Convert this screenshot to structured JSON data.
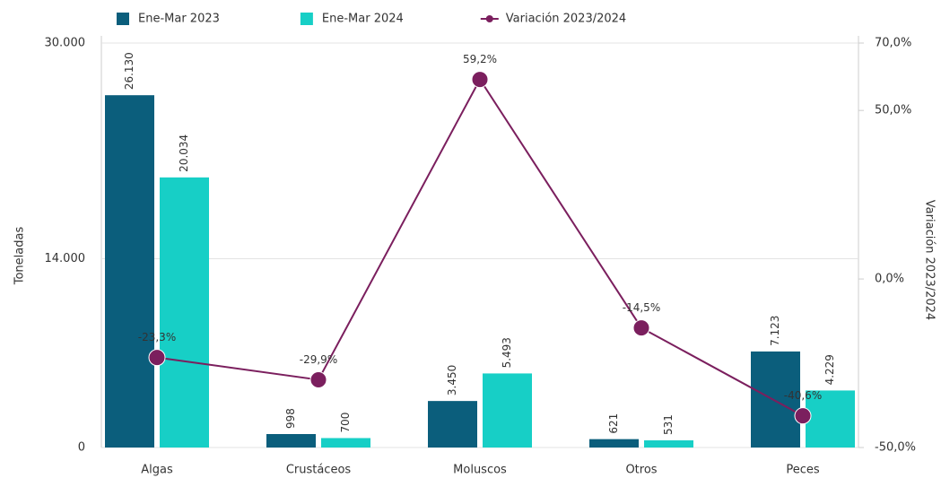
{
  "chart_data": {
    "type": "bar_line",
    "categories": [
      "Algas",
      "Crustáceos",
      "Moluscos",
      "Otros",
      "Peces"
    ],
    "series": [
      {
        "name": "Ene-Mar 2023",
        "color": "#0b5e7c",
        "type": "bar",
        "values": [
          26130,
          998,
          3450,
          621,
          7123
        ],
        "value_labels": [
          "26.130",
          "998",
          "3.450",
          "621",
          "7.123"
        ]
      },
      {
        "name": "Ene-Mar 2024",
        "color": "#17cfc6",
        "type": "bar",
        "values": [
          20034,
          700,
          5493,
          531,
          4229
        ],
        "value_labels": [
          "20.034",
          "700",
          "5.493",
          "531",
          "4.229"
        ]
      },
      {
        "name": "Variación 2023/2024",
        "color": "#7b1f5e",
        "type": "line",
        "axis": "y2",
        "values": [
          -23.3,
          -29.9,
          59.2,
          -14.5,
          -40.6
        ],
        "value_labels": [
          "-23,3%",
          "-29,9%",
          "59,2%",
          "-14,5%",
          "-40,6%"
        ]
      }
    ],
    "ylabel": "Toneladas",
    "y2label": "Variación 2023/2024",
    "ylim": [
      0,
      30000
    ],
    "yticks": [
      0,
      {
        "value": 14000,
        "label": "14.000"
      },
      {
        "value": 30000,
        "label": "30.000"
      }
    ],
    "y2lim": [
      -50,
      70
    ],
    "y2ticks": [
      {
        "value": -50,
        "label": "-50,0%"
      },
      {
        "value": 0,
        "label": "0,0%"
      },
      {
        "value": 50,
        "label": "50,0%"
      },
      {
        "value": 70,
        "label": "70,0%"
      }
    ],
    "grid": true,
    "legend": "top"
  }
}
